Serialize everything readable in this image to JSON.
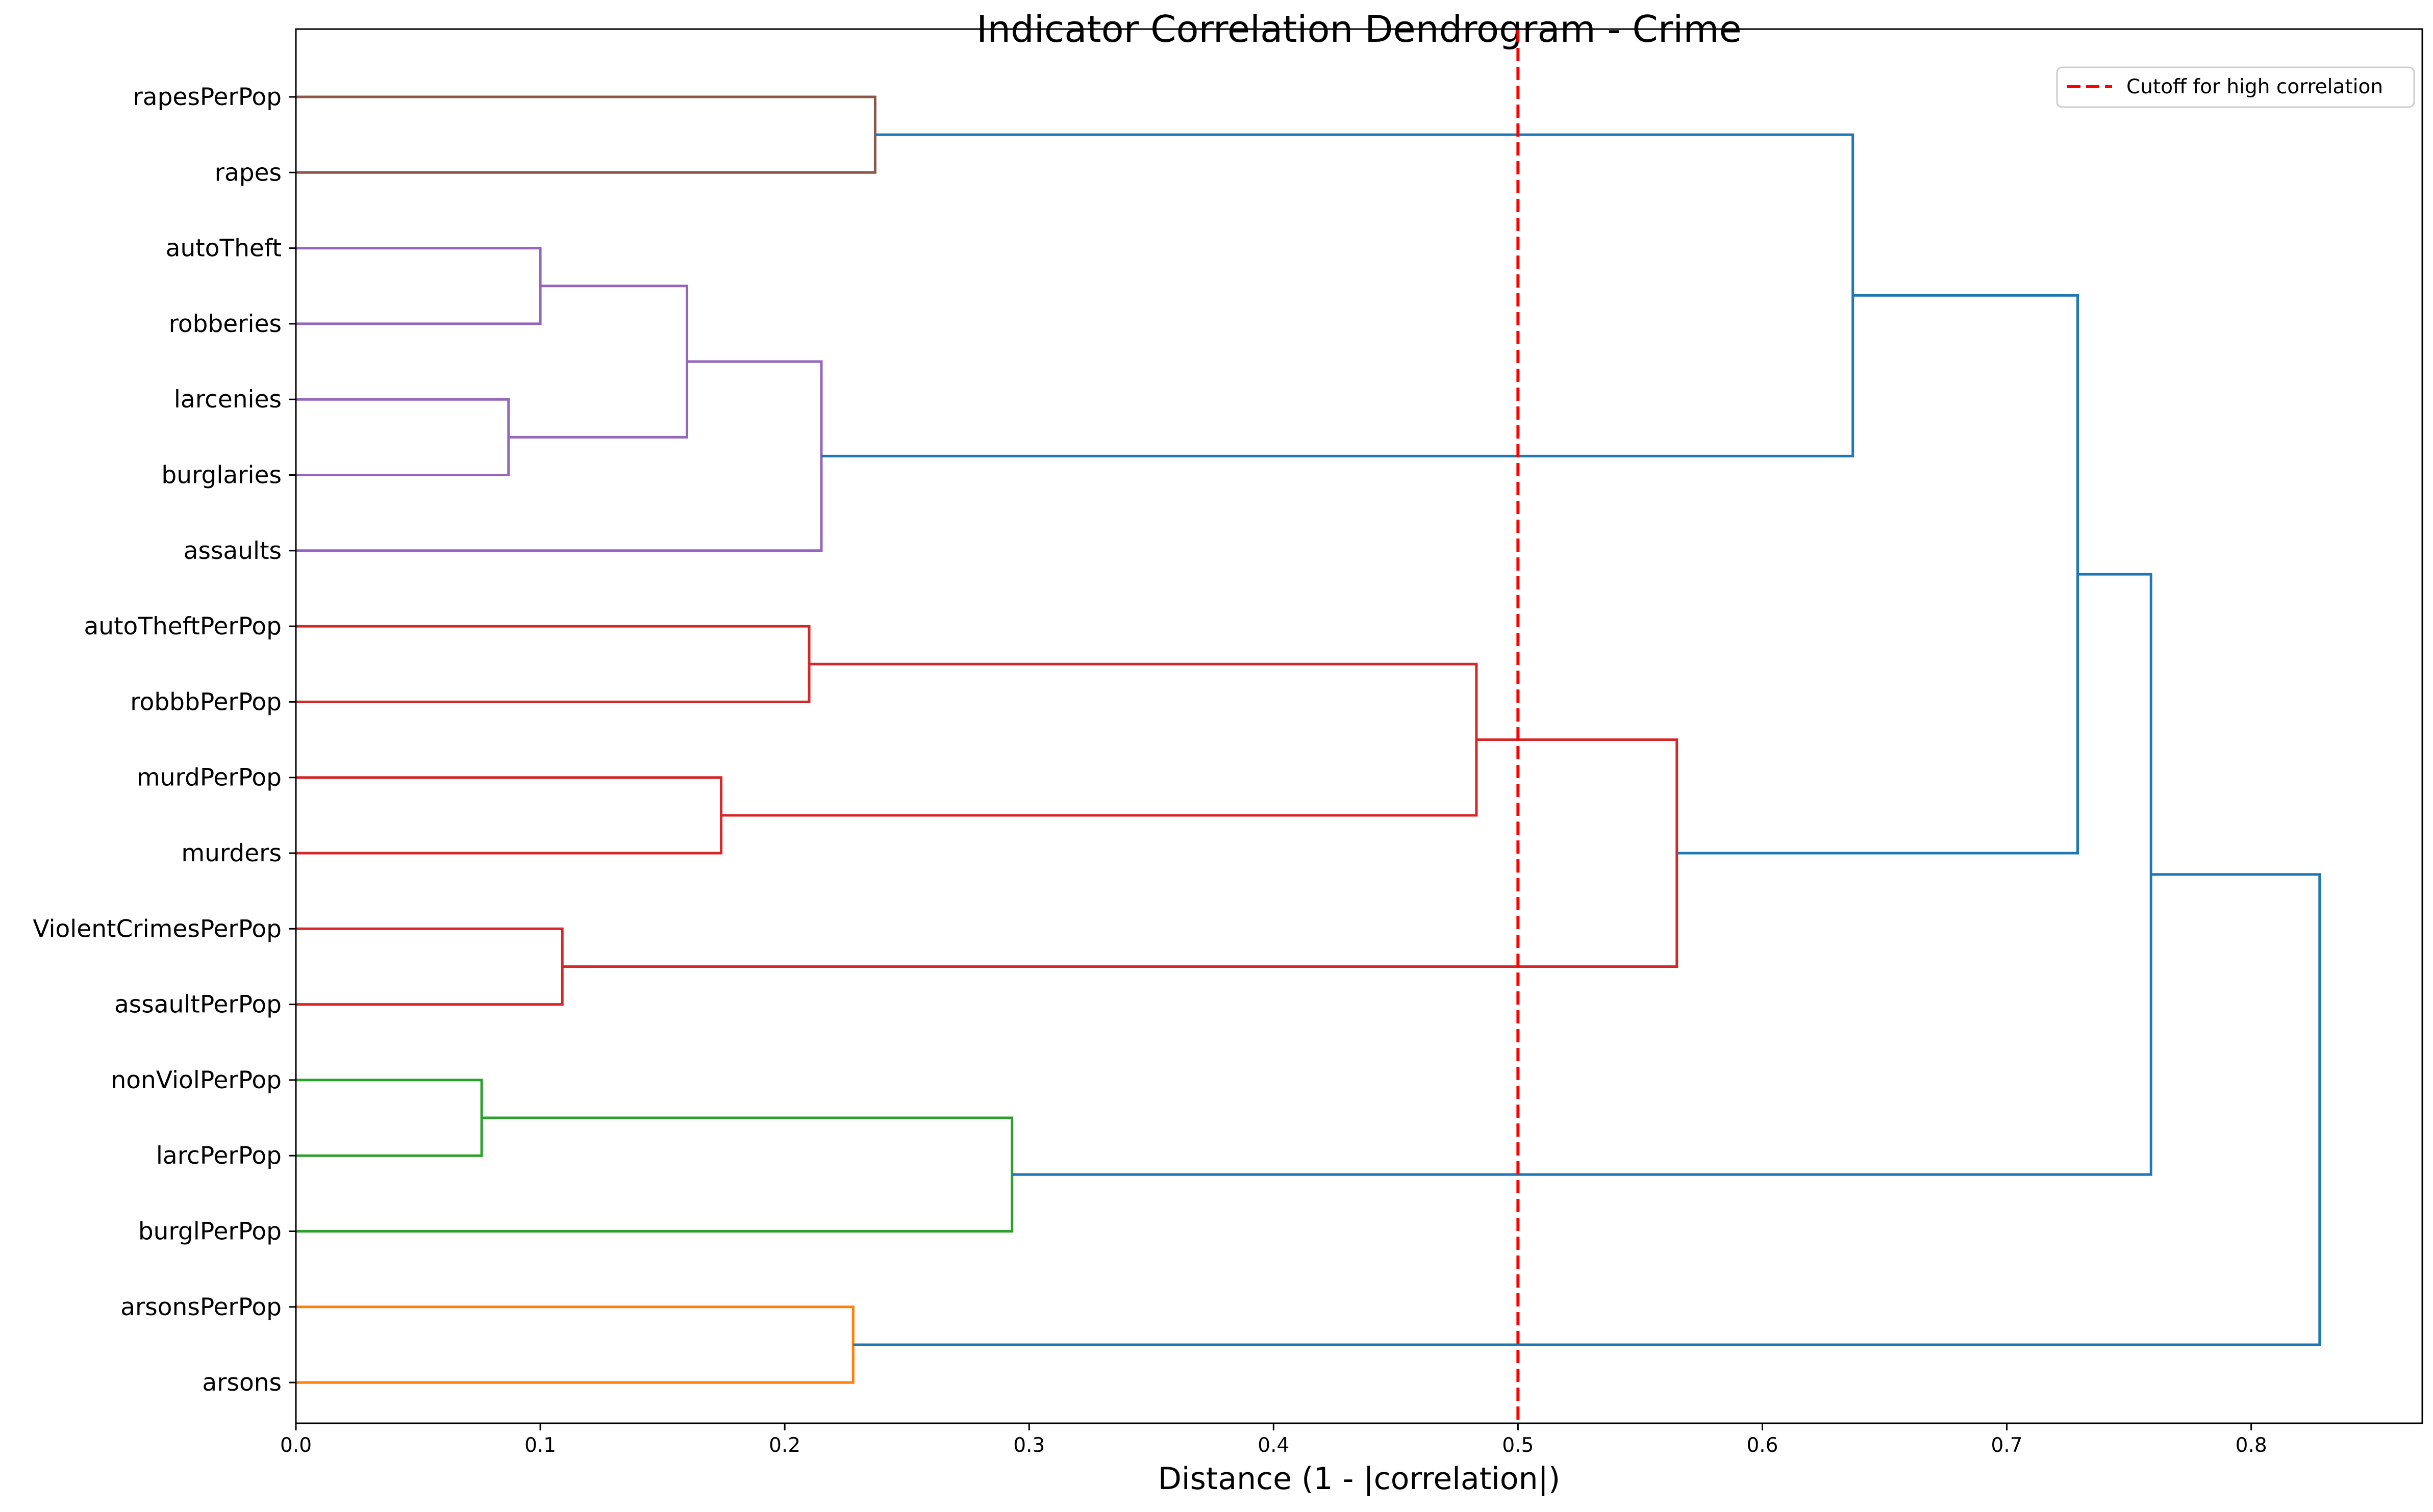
{
  "chart_data": {
    "type": "dendrogram",
    "orientation": "horizontal",
    "title": "Indicator Correlation Dendrogram - Crime",
    "xlabel": "Distance (1 - |correlation|)",
    "ylabel": "",
    "xlim": [
      0,
      0.87
    ],
    "xticks": [
      0.0,
      0.1,
      0.2,
      0.3,
      0.4,
      0.5,
      0.6,
      0.7,
      0.8
    ],
    "xtick_labels": [
      "0.0",
      "0.1",
      "0.2",
      "0.3",
      "0.4",
      "0.5",
      "0.6",
      "0.7",
      "0.8"
    ],
    "grid": false,
    "legend": {
      "placement": "upper right",
      "entries": [
        {
          "label": "Cutoff for high correlation",
          "color": "#ff0000",
          "style": "dashed"
        }
      ]
    },
    "cutoff": 0.5,
    "colors": {
      "brown": "#8c564b",
      "purple": "#9467bd",
      "red": "#d62728",
      "green": "#2ca02c",
      "orange": "#ff7f0e",
      "blue": "#1f77b4"
    },
    "leaves": [
      "rapesPerPop",
      "rapes",
      "autoTheft",
      "robberies",
      "larcenies",
      "burglaries",
      "assaults",
      "autoTheftPerPop",
      "robbbPerPop",
      "murdPerPop",
      "murders",
      "ViolentCrimesPerPop",
      "assaultPerPop",
      "nonViolPerPop",
      "larcPerPop",
      "burglPerPop",
      "arsonsPerPop",
      "arsons"
    ],
    "merges": [
      {
        "id": "m1",
        "a": "rapesPerPop",
        "b": "rapes",
        "distance": 0.237,
        "color": "brown"
      },
      {
        "id": "m2",
        "a": "autoTheft",
        "b": "robberies",
        "distance": 0.1,
        "color": "purple"
      },
      {
        "id": "m3",
        "a": "larcenies",
        "b": "burglaries",
        "distance": 0.087,
        "color": "purple"
      },
      {
        "id": "m4",
        "a": "m2",
        "b": "m3",
        "distance": 0.16,
        "color": "purple"
      },
      {
        "id": "m5",
        "a": "m4",
        "b": "assaults",
        "distance": 0.215,
        "color": "purple"
      },
      {
        "id": "m6",
        "a": "m1",
        "b": "m5",
        "distance": 0.637,
        "color": "blue"
      },
      {
        "id": "m7",
        "a": "autoTheftPerPop",
        "b": "robbbPerPop",
        "distance": 0.21,
        "color": "red"
      },
      {
        "id": "m8",
        "a": "murdPerPop",
        "b": "murders",
        "distance": 0.174,
        "color": "red"
      },
      {
        "id": "m9",
        "a": "m7",
        "b": "m8",
        "distance": 0.483,
        "color": "red"
      },
      {
        "id": "m10",
        "a": "ViolentCrimesPerPop",
        "b": "assaultPerPop",
        "distance": 0.109,
        "color": "red"
      },
      {
        "id": "m11",
        "a": "m9",
        "b": "m10",
        "distance": 0.565,
        "color": "red"
      },
      {
        "id": "m12",
        "a": "m6",
        "b": "m11",
        "distance": 0.729,
        "color": "blue"
      },
      {
        "id": "m13",
        "a": "nonViolPerPop",
        "b": "larcPerPop",
        "distance": 0.076,
        "color": "green"
      },
      {
        "id": "m14",
        "a": "m13",
        "b": "burglPerPop",
        "distance": 0.293,
        "color": "green"
      },
      {
        "id": "m15",
        "a": "m12",
        "b": "m14",
        "distance": 0.759,
        "color": "blue"
      },
      {
        "id": "m16",
        "a": "arsonsPerPop",
        "b": "arsons",
        "distance": 0.228,
        "color": "orange"
      },
      {
        "id": "m17",
        "a": "m15",
        "b": "m16",
        "distance": 0.828,
        "color": "blue"
      }
    ]
  }
}
